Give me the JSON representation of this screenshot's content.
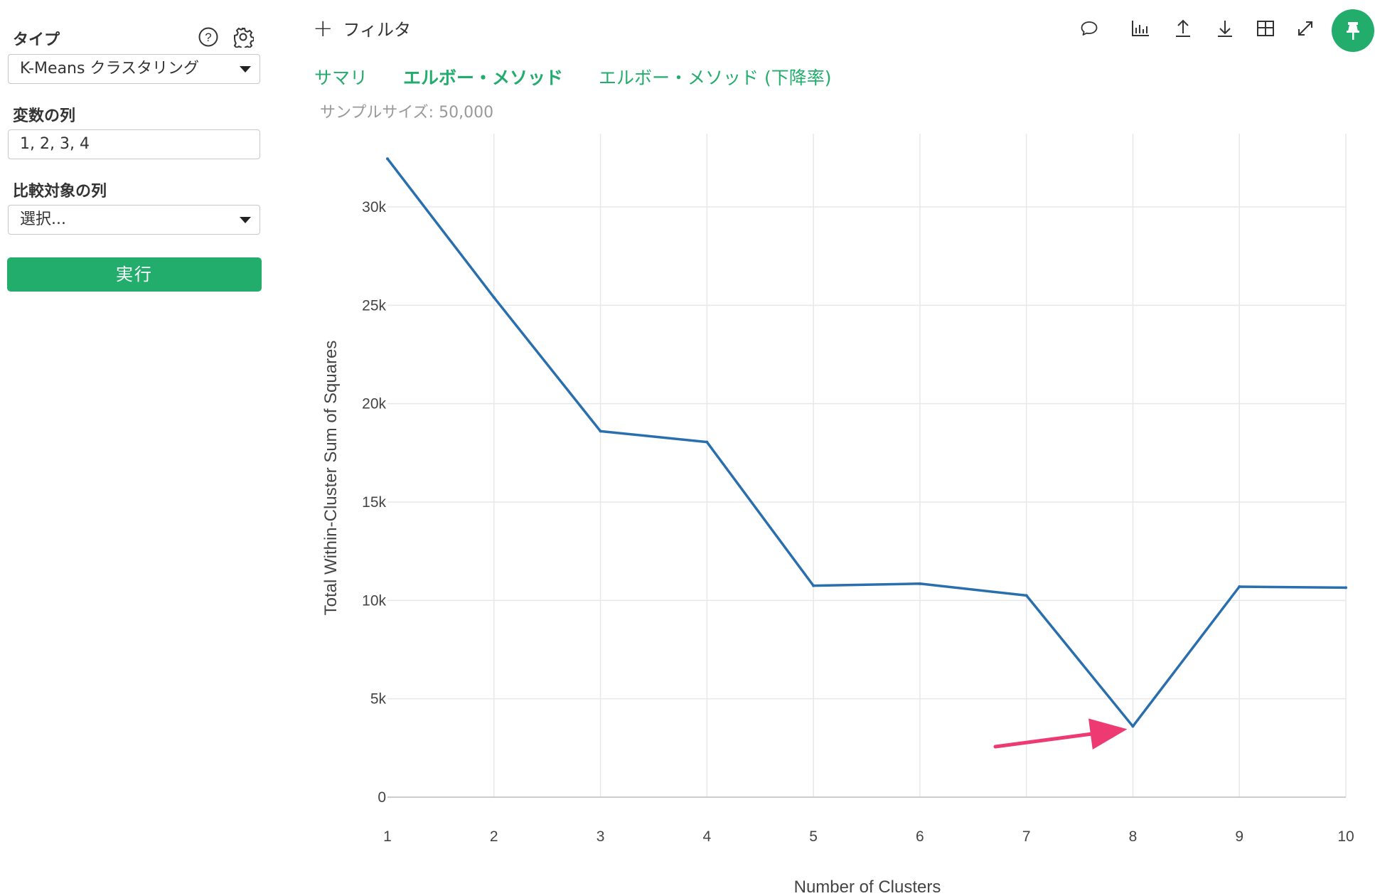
{
  "sidebar": {
    "type_label": "タイプ",
    "type_value": "K-Means クラスタリング",
    "variables_label": "変数の列",
    "variables_value": "1, 2, 3, 4",
    "compare_label": "比較対象の列",
    "compare_value": "選択...",
    "run_label": "実行"
  },
  "topbar": {
    "filter_label": "フィルタ",
    "icons": [
      "comment-icon",
      "bar-chart-icon",
      "upload-icon",
      "download-icon",
      "table-icon",
      "expand-icon",
      "pin-icon"
    ]
  },
  "tabs": [
    {
      "label": "サマリ",
      "active": false
    },
    {
      "label": "エルボー・メソッド",
      "active": true
    },
    {
      "label": "エルボー・メソッド (下降率)",
      "active": false
    }
  ],
  "sample_size": "サンプルサイズ: 50,000",
  "colors": {
    "accent": "#22ad6c",
    "line": "#2a6fad",
    "arrow": "#ee3a72"
  },
  "chart_data": {
    "type": "line",
    "x": [
      1,
      2,
      3,
      4,
      5,
      6,
      7,
      8,
      9,
      10
    ],
    "series": [
      {
        "values": [
          32450,
          25400,
          18600,
          18050,
          10750,
          10850,
          10250,
          3600,
          10700,
          10650
        ]
      }
    ],
    "xlabel": "Number of Clusters",
    "ylabel": "Total Within-Cluster Sum of Squares",
    "xlim": [
      1,
      10
    ],
    "ylim": [
      0,
      33000
    ],
    "yticks": [
      0,
      5000,
      10000,
      15000,
      20000,
      25000,
      30000
    ],
    "ytick_labels": [
      "0",
      "5k",
      "10k",
      "15k",
      "20k",
      "25k",
      "30k"
    ],
    "xtick_labels": [
      "1",
      "2",
      "3",
      "4",
      "5",
      "6",
      "7",
      "8",
      "9",
      "10"
    ],
    "grid": true,
    "annotation": {
      "type": "arrow",
      "target_x": 8,
      "target_y": 3600
    }
  }
}
